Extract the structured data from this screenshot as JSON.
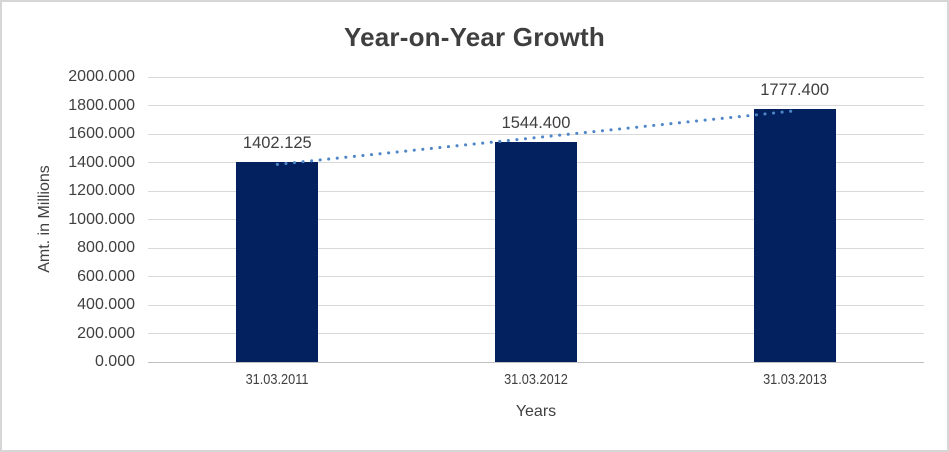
{
  "chart_data": {
    "type": "bar",
    "title": "Year-on-Year Growth",
    "xlabel": "Years",
    "ylabel": "Amt. in Millions",
    "categories": [
      "31.03.2011",
      "31.03.2012",
      "31.03.2013"
    ],
    "values": [
      1402.125,
      1544.4,
      1777.4
    ],
    "data_labels": [
      "1402.125",
      "1544.400",
      "1777.400"
    ],
    "ylim": [
      0,
      2000
    ],
    "ytick_step": 200,
    "ytick_labels": [
      "0.000",
      "200.000",
      "400.000",
      "600.000",
      "800.000",
      "1000.000",
      "1200.000",
      "1400.000",
      "1600.000",
      "1800.000",
      "2000.000"
    ],
    "grid": true,
    "legend": "none",
    "trendline": {
      "type": "linear",
      "style": "dotted",
      "start_value": 1387.0,
      "end_value": 1762.3,
      "color": "#4E86C8"
    },
    "colors": {
      "bar": "#03215F",
      "gridline": "#D9D9D9",
      "axis_line": "#BFBFBF",
      "text": "#404040",
      "title": "#3F3F3F",
      "border": "#D6D6D6"
    }
  }
}
